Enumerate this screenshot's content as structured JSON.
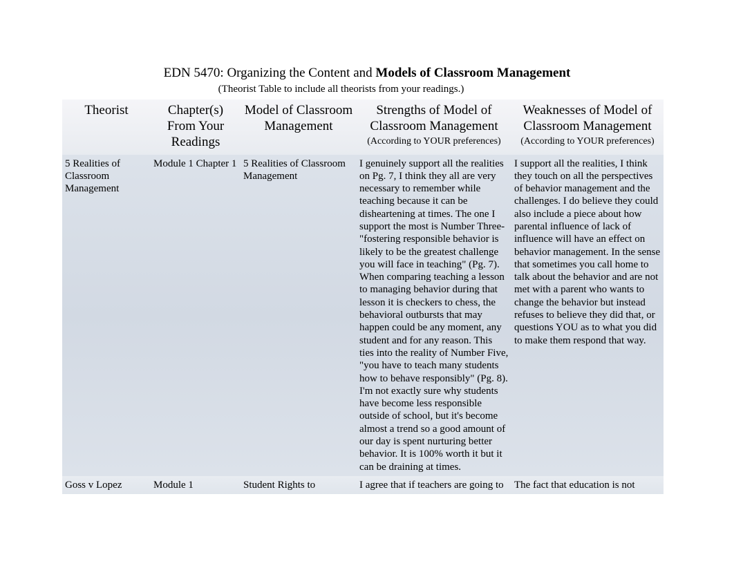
{
  "title": {
    "prefix": "EDN 5470: Organizing the Content and  ",
    "main": "Models of Classroom Management"
  },
  "subtitle": "(Theorist Table to include all theorists from your readings.)",
  "headers": {
    "theorist": "Theorist",
    "chapter": "Chapter(s) From Your Readings",
    "model": "Model of Classroom Management",
    "strengths_main": "Strengths of Model of Classroom Management",
    "strengths_sub": "(According to YOUR preferences)",
    "weaknesses_main": "Weaknesses of Model of Classroom Management",
    "weaknesses_sub": "(According to YOUR preferences)"
  },
  "rows": [
    {
      "theorist": "5 Realities of Classroom Management",
      "chapter": "Module 1 Chapter 1",
      "model": "5 Realities of Classroom Management",
      "strengths": "I genuinely support all the realities on Pg. 7, I think they all are very necessary to remember while teaching because it can be disheartening at times. The one I support the most is Number Three- \"fostering responsible behavior is likely to be the greatest challenge you will face in teaching\" (Pg. 7). When comparing teaching a lesson to managing behavior during that lesson it is checkers to chess, the behavioral outbursts that may happen could be any moment, any student and for any reason. This ties into the reality of Number Five, \"you have to teach many students how to behave responsibly\" (Pg. 8). I'm not exactly sure why students have become less responsible outside of school, but it's become almost a trend so a good amount of our day is spent nurturing better behavior. It is 100% worth it but it can be draining at times.",
      "weaknesses": "I support all the realities, I think they touch on all the perspectives of behavior management and the challenges. I do believe they could also include a piece about how parental influence of lack of influence will have an effect on behavior management. In the sense that sometimes you call home to talk about the behavior and are not met with a parent who wants to change the behavior but instead refuses to believe they did that, or questions YOU as to what you did to make them respond that way."
    },
    {
      "theorist": "Goss v Lopez",
      "chapter": "Module 1",
      "model": "Student Rights to",
      "strengths": "I agree that if teachers are going to",
      "weaknesses": "The fact that education is not"
    }
  ],
  "colors": {
    "background": "#ffffff",
    "text": "#000000",
    "header_bg_top": "#f5f5f8",
    "header_bg_bottom": "#e8ebf0",
    "row1_bg": "#d8dee8",
    "row2_bg": "#e4e8ef"
  }
}
